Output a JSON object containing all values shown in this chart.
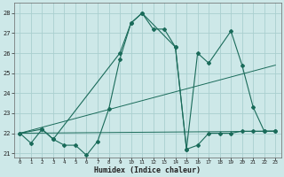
{
  "background_color": "#cde8e8",
  "grid_color": "#aacfcf",
  "line_color": "#1a6b5a",
  "xlabel": "Humidex (Indice chaleur)",
  "xlim": [
    -0.5,
    23.5
  ],
  "ylim": [
    20.8,
    28.5
  ],
  "yticks": [
    21,
    22,
    23,
    24,
    25,
    26,
    27,
    28
  ],
  "xticks": [
    0,
    1,
    2,
    3,
    4,
    5,
    6,
    7,
    8,
    9,
    10,
    11,
    12,
    13,
    14,
    15,
    16,
    17,
    18,
    19,
    20,
    21,
    22,
    23
  ],
  "series": [
    {
      "x": [
        0,
        1,
        2,
        3,
        4,
        5,
        6,
        7,
        8,
        9,
        10,
        11,
        12,
        13,
        14,
        15,
        16,
        17,
        18,
        19,
        20,
        21,
        22,
        23
      ],
      "y": [
        22.0,
        21.5,
        22.2,
        21.7,
        21.4,
        21.4,
        20.9,
        21.6,
        23.2,
        25.7,
        27.5,
        28.0,
        27.2,
        27.2,
        26.3,
        21.2,
        21.4,
        22.0,
        22.0,
        22.0,
        22.1,
        22.1,
        22.1,
        22.1
      ]
    },
    {
      "x": [
        0,
        2,
        3,
        9,
        10,
        11,
        14,
        15,
        16,
        17,
        19,
        20,
        21,
        22,
        23
      ],
      "y": [
        22.0,
        22.2,
        21.7,
        26.0,
        27.5,
        28.0,
        26.3,
        21.2,
        26.0,
        25.5,
        27.1,
        25.4,
        23.3,
        22.1,
        22.1
      ]
    },
    {
      "x": [
        0,
        23
      ],
      "y": [
        22.0,
        22.1
      ]
    },
    {
      "x": [
        0,
        23
      ],
      "y": [
        22.0,
        25.4
      ]
    }
  ]
}
